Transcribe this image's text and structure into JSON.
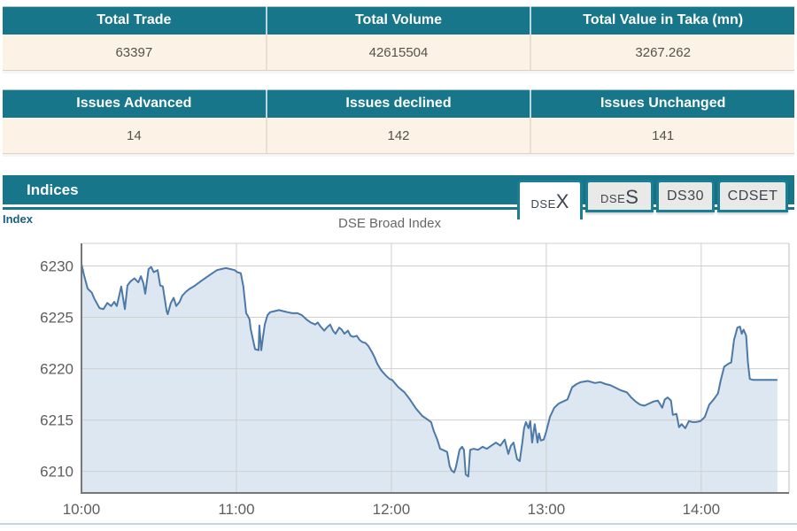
{
  "summary_table": {
    "headers": [
      "Total Trade",
      "Total Volume",
      "Total Value in Taka (mn)"
    ],
    "values": [
      "63397",
      "42615504",
      "3267.262"
    ]
  },
  "issues_table": {
    "headers": [
      "Issues Advanced",
      "Issues declined",
      "Issues Unchanged"
    ],
    "values": [
      "14",
      "142",
      "141"
    ]
  },
  "indices_panel": {
    "title": "Indices",
    "axis_label": "Index",
    "tabs": [
      {
        "prefix": "DSE",
        "suffix": "X",
        "active": true
      },
      {
        "prefix": "DSE",
        "suffix": "S",
        "active": false
      },
      {
        "label": "DS30",
        "active": false
      },
      {
        "label": "CDSET",
        "active": false
      }
    ]
  },
  "colors": {
    "teal": "#17768A",
    "cream": "#FCF3E6",
    "line": "#4C79A8",
    "fill": "#DCE7F1",
    "grid": "#CFCFCF",
    "axis": "#777777",
    "tick_text": "#5E5E5E",
    "border_right": "#BBBBBB"
  },
  "chart_data": {
    "type": "area",
    "title": "DSE Broad Index",
    "ylabel": "Index",
    "xlabel": "",
    "grid": true,
    "legend": "none",
    "x_ticks": [
      "10:00",
      "11:00",
      "12:00",
      "13:00",
      "14:00"
    ],
    "x_tick_minutes": [
      0,
      60,
      120,
      180,
      240
    ],
    "xlim_minutes": [
      0,
      274
    ],
    "y_ticks": [
      6210,
      6215,
      6220,
      6225,
      6230
    ],
    "ylim": [
      6207.9,
      6232.2
    ],
    "series": [
      {
        "name": "DSEX",
        "points": [
          [
            0,
            6230.2
          ],
          [
            1,
            6229.1
          ],
          [
            2.4,
            6227.8
          ],
          [
            4,
            6227.4
          ],
          [
            5,
            6226.8
          ],
          [
            7,
            6225.9
          ],
          [
            8.5,
            6225.8
          ],
          [
            10,
            6226.4
          ],
          [
            11.5,
            6226.1
          ],
          [
            12.7,
            6226.5
          ],
          [
            13.7,
            6226.1
          ],
          [
            15.4,
            6228.0
          ],
          [
            16.8,
            6225.8
          ],
          [
            17.8,
            6228.1
          ],
          [
            19,
            6228.5
          ],
          [
            20.5,
            6228.8
          ],
          [
            22,
            6228.4
          ],
          [
            23,
            6229.0
          ],
          [
            24,
            6228.3
          ],
          [
            24.7,
            6227.3
          ],
          [
            26,
            6229.7
          ],
          [
            27,
            6229.9
          ],
          [
            28,
            6229.4
          ],
          [
            29.5,
            6229.6
          ],
          [
            30.5,
            6228.1
          ],
          [
            31.5,
            6228.0
          ],
          [
            33,
            6225.6
          ],
          [
            33.4,
            6225.3
          ],
          [
            34.6,
            6226.4
          ],
          [
            35.7,
            6226.9
          ],
          [
            36.7,
            6226.1
          ],
          [
            38,
            6226.5
          ],
          [
            39,
            6227.1
          ],
          [
            40.5,
            6227.5
          ],
          [
            42,
            6227.8
          ],
          [
            44,
            6228.1
          ],
          [
            45.6,
            6228.4
          ],
          [
            47.3,
            6228.7
          ],
          [
            49,
            6229.0
          ],
          [
            50.7,
            6229.3
          ],
          [
            52.5,
            6229.6
          ],
          [
            54.2,
            6229.7
          ],
          [
            55.9,
            6229.8
          ],
          [
            57.6,
            6229.7
          ],
          [
            59.3,
            6229.6
          ],
          [
            60.3,
            6229.4
          ],
          [
            61.7,
            6229.3
          ],
          [
            62.7,
            6228.0
          ],
          [
            63.8,
            6225.4
          ],
          [
            64.5,
            6225.1
          ],
          [
            65.1,
            6224.8
          ],
          [
            65.5,
            6223.9
          ],
          [
            66.2,
            6223.1
          ],
          [
            67.2,
            6221.9
          ],
          [
            68.6,
            6221.8
          ],
          [
            68.9,
            6224.2
          ],
          [
            69.6,
            6221.8
          ],
          [
            70.3,
            6223.1
          ],
          [
            71,
            6224.3
          ],
          [
            72,
            6225.2
          ],
          [
            73,
            6225.5
          ],
          [
            74.7,
            6225.6
          ],
          [
            76.5,
            6225.7
          ],
          [
            78.2,
            6225.6
          ],
          [
            79.9,
            6225.5
          ],
          [
            81.6,
            6225.4
          ],
          [
            83.7,
            6225.4
          ],
          [
            85.4,
            6225.2
          ],
          [
            87.1,
            6224.8
          ],
          [
            88.8,
            6224.5
          ],
          [
            90.5,
            6224.3
          ],
          [
            91.5,
            6224.5
          ],
          [
            92.6,
            6224.1
          ],
          [
            94,
            6223.7
          ],
          [
            95,
            6224.0
          ],
          [
            96.3,
            6224.3
          ],
          [
            97.4,
            6223.7
          ],
          [
            98.4,
            6223.4
          ],
          [
            99.8,
            6224.0
          ],
          [
            100.8,
            6223.8
          ],
          [
            101.8,
            6223.4
          ],
          [
            103.2,
            6223.7
          ],
          [
            104.2,
            6223.2
          ],
          [
            105.3,
            6223.1
          ],
          [
            106.6,
            6223.2
          ],
          [
            107.7,
            6222.8
          ],
          [
            108.7,
            6222.6
          ],
          [
            110,
            6222.5
          ],
          [
            111.1,
            6222.2
          ],
          [
            112.5,
            6221.6
          ],
          [
            113.5,
            6221.1
          ],
          [
            114.5,
            6220.5
          ],
          [
            115.9,
            6219.9
          ],
          [
            116.9,
            6219.6
          ],
          [
            118,
            6219.3
          ],
          [
            119.3,
            6219.0
          ],
          [
            120.3,
            6218.9
          ],
          [
            122.7,
            6218.2
          ],
          [
            125.1,
            6217.7
          ],
          [
            127.2,
            6217.0
          ],
          [
            129.6,
            6216.1
          ],
          [
            132,
            6215.4
          ],
          [
            133.7,
            6215.1
          ],
          [
            135.4,
            6214.8
          ],
          [
            136.5,
            6213.9
          ],
          [
            137.8,
            6213.1
          ],
          [
            138.9,
            6212.2
          ],
          [
            139.9,
            6212.1
          ],
          [
            141.6,
            6211.9
          ],
          [
            142.6,
            6210.5
          ],
          [
            143.3,
            6210.1
          ],
          [
            144.3,
            6209.9
          ],
          [
            145,
            6210.4
          ],
          [
            146.4,
            6212.1
          ],
          [
            147.4,
            6212.4
          ],
          [
            148.1,
            6212.1
          ],
          [
            148.8,
            6209.7
          ],
          [
            149.8,
            6209.5
          ],
          [
            150.5,
            6212.1
          ],
          [
            151.9,
            6212.2
          ],
          [
            153.6,
            6212.1
          ],
          [
            155.3,
            6212.4
          ],
          [
            157,
            6212.2
          ],
          [
            158.7,
            6212.5
          ],
          [
            160.5,
            6212.8
          ],
          [
            162.2,
            6212.5
          ],
          [
            163.9,
            6213.1
          ],
          [
            165.3,
            6211.7
          ],
          [
            166.3,
            6212.5
          ],
          [
            167.3,
            6212.8
          ],
          [
            168.7,
            6211.2
          ],
          [
            169.7,
            6211.0
          ],
          [
            170.7,
            6212.8
          ],
          [
            171.4,
            6214.2
          ],
          [
            172.1,
            6214.8
          ],
          [
            173.1,
            6214.2
          ],
          [
            173.8,
            6214.9
          ],
          [
            174.5,
            6212.8
          ],
          [
            175.5,
            6214.6
          ],
          [
            176.6,
            6212.8
          ],
          [
            177.2,
            6213.7
          ],
          [
            177.9,
            6213.0
          ],
          [
            179,
            6213.1
          ],
          [
            180,
            6213.9
          ],
          [
            181.4,
            6215.3
          ],
          [
            183.1,
            6216.2
          ],
          [
            184.8,
            6216.6
          ],
          [
            186.5,
            6216.8
          ],
          [
            188.2,
            6217.0
          ],
          [
            190,
            6218.2
          ],
          [
            191.7,
            6218.5
          ],
          [
            193.4,
            6218.7
          ],
          [
            196.1,
            6218.8
          ],
          [
            198.9,
            6218.6
          ],
          [
            200.9,
            6218.7
          ],
          [
            203,
            6218.5
          ],
          [
            204.7,
            6218.4
          ],
          [
            206.4,
            6218.2
          ],
          [
            208.8,
            6217.9
          ],
          [
            211.2,
            6217.7
          ],
          [
            212.9,
            6217.2
          ],
          [
            214.6,
            6216.8
          ],
          [
            216.3,
            6216.5
          ],
          [
            218,
            6216.4
          ],
          [
            219.8,
            6216.6
          ],
          [
            221.5,
            6216.8
          ],
          [
            223.2,
            6216.9
          ],
          [
            224.9,
            6216.2
          ],
          [
            225.9,
            6217.0
          ],
          [
            227,
            6217.2
          ],
          [
            228.3,
            6216.9
          ],
          [
            229,
            6215.5
          ],
          [
            230.4,
            6215.6
          ],
          [
            231.4,
            6214.3
          ],
          [
            232.4,
            6214.6
          ],
          [
            233.8,
            6214.2
          ],
          [
            235.2,
            6214.9
          ],
          [
            236.6,
            6214.8
          ],
          [
            238,
            6214.8
          ],
          [
            239.7,
            6214.9
          ],
          [
            241.4,
            6215.3
          ],
          [
            243.1,
            6216.5
          ],
          [
            244.8,
            6217.0
          ],
          [
            246.5,
            6217.6
          ],
          [
            247.5,
            6218.8
          ],
          [
            248.9,
            6220.2
          ],
          [
            250.6,
            6220.5
          ],
          [
            251.6,
            6220.6
          ],
          [
            252.7,
            6222.8
          ],
          [
            254,
            6224.0
          ],
          [
            255,
            6224.1
          ],
          [
            255.7,
            6223.4
          ],
          [
            256.4,
            6223.8
          ],
          [
            257.4,
            6223.2
          ],
          [
            258.1,
            6220.6
          ],
          [
            258.8,
            6219.0
          ],
          [
            260.1,
            6218.9
          ],
          [
            269.5,
            6218.9
          ]
        ]
      }
    ]
  }
}
